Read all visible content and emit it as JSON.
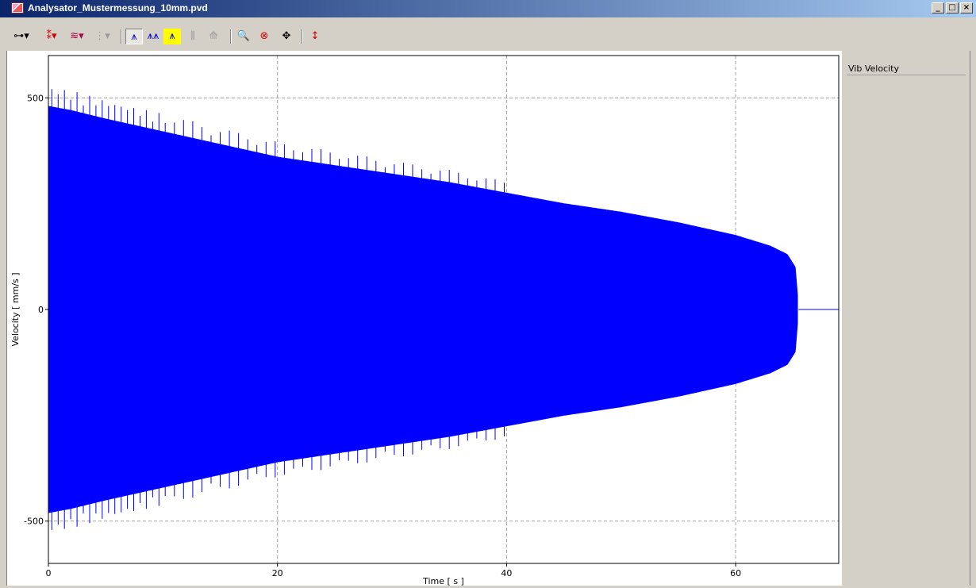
{
  "window": {
    "title": "Analysator_Mustermessung_10mm.pvd",
    "minimize_label": "_",
    "maximize_label": "□",
    "close_label": "×"
  },
  "toolbar": {
    "buttons": [
      {
        "name": "cursor-tool-icon",
        "glyph": "⊶▾"
      },
      {
        "name": "marker-tool-icon",
        "glyph": "⁑▾"
      },
      {
        "name": "filter-tool-icon",
        "glyph": "≋▾"
      },
      {
        "name": "channel-tool-icon",
        "glyph": "⋮▾"
      },
      {
        "name": "peak-view-icon",
        "glyph": "⩚"
      },
      {
        "name": "double-peak-icon",
        "glyph": "⩚⩚"
      },
      {
        "name": "highlight-peak-icon",
        "glyph": "⩚"
      },
      {
        "name": "multi-peak-icon",
        "glyph": "⫼"
      },
      {
        "name": "peak-marker-icon",
        "glyph": "⟰"
      },
      {
        "name": "zoom-icon",
        "glyph": "🔍"
      },
      {
        "name": "zoom-reset-icon",
        "glyph": "⊗"
      },
      {
        "name": "pan-icon",
        "glyph": "✥"
      },
      {
        "name": "scale-icon",
        "glyph": "↕"
      }
    ]
  },
  "legend": {
    "channel": "Vib Velocity"
  },
  "colors": {
    "signal": "#0000ff",
    "grid": "#a0a0a0"
  },
  "chart_data": {
    "type": "line",
    "xlabel": "Time [ s ]",
    "ylabel": "Velocity [ mm/s ]",
    "xlim": [
      0,
      69
    ],
    "ylim": [
      -600,
      600
    ],
    "xticks": [
      0,
      20,
      40,
      60
    ],
    "yticks": [
      500,
      0,
      -500
    ],
    "grid": true,
    "series": [
      {
        "name": "Vib Velocity",
        "envelope_time_s": [
          0,
          2,
          5,
          10,
          15,
          20,
          25,
          30,
          35,
          40,
          45,
          50,
          55,
          60,
          63,
          64.5,
          65.2,
          65.5,
          69
        ],
        "envelope_amplitude_mm_s": [
          480,
          470,
          450,
          420,
          390,
          360,
          340,
          320,
          300,
          275,
          250,
          230,
          205,
          175,
          150,
          130,
          100,
          0,
          0
        ]
      }
    ]
  }
}
